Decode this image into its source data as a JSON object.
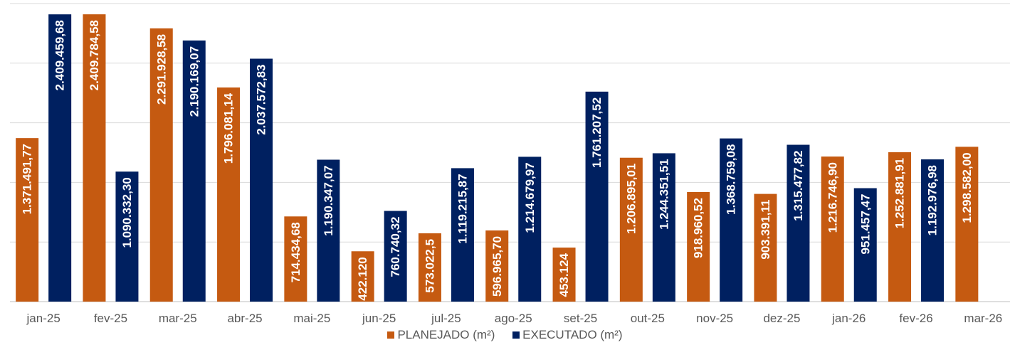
{
  "chart_data": {
    "type": "bar",
    "categories": [
      "jan-25",
      "fev-25",
      "mar-25",
      "abr-25",
      "mai-25",
      "jun-25",
      "jul-25",
      "ago-25",
      "set-25",
      "out-25",
      "nov-25",
      "dez-25",
      "jan-26",
      "fev-26",
      "mar-26"
    ],
    "series": [
      {
        "name": "PLANEJADO (m²)",
        "color": "#C55A11",
        "values": [
          1371491.77,
          2409784.58,
          2291928.58,
          1796081.14,
          714434.68,
          422120,
          573022.5,
          596965.7,
          453124,
          1206895.01,
          918960.52,
          903391.11,
          1216746.9,
          1252881.91,
          1298582.0
        ],
        "labels": [
          "1.371.491,77",
          "2.409.784,58",
          "2.291.928,58",
          "1.796.081,14",
          "714.434,68",
          "422.120",
          "573.022,5",
          "596.965,70",
          "453.124",
          "1.206.895,01",
          "918.960,52",
          "903.391,11",
          "1.216.746,90",
          "1.252.881,91",
          "1.298.582,00"
        ]
      },
      {
        "name": "EXECUTADO (m²)",
        "color": "#002060",
        "values": [
          2409459.68,
          1090332.3,
          2190169.07,
          2037572.83,
          1190347.07,
          760740.32,
          1119215.87,
          1214679.97,
          1761207.52,
          1244351.51,
          1368759.08,
          1315477.82,
          951457.47,
          1192976.98,
          null
        ],
        "labels": [
          "2.409.459,68",
          "1.090.332,30",
          "2.190.169,07",
          "2.037.572,83",
          "1.190.347,07",
          "760.740,32",
          "1.119.215,87",
          "1.214.679,97",
          "1.761.207,52",
          "1.244.351,51",
          "1.368.759,08",
          "1.315.477,82",
          "951.457,47",
          "1.192.976,98",
          null
        ]
      }
    ],
    "ylim": [
      0,
      2500000
    ],
    "grid": true,
    "legend_position": "bottom"
  },
  "colors": {
    "planejado": "#C55A11",
    "executado": "#002060",
    "grid": "#d9d9d9",
    "axis_text": "#595959"
  }
}
